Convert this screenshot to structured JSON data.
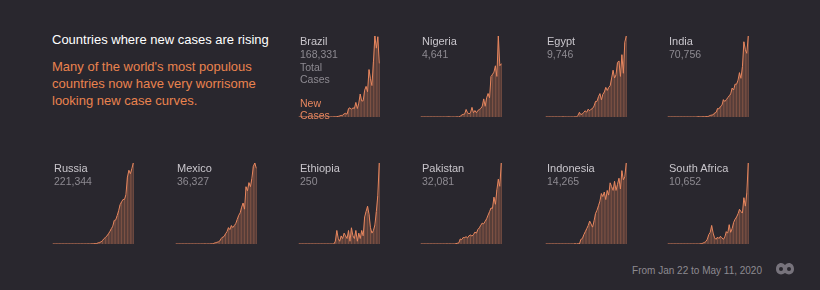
{
  "title": "Countries where new cases are rising",
  "subtitle": "Many of the world's most populous countries now have very worrisome looking new case curves.",
  "note": "From Jan 22 to May 11, 2020",
  "chart_data": [
    {
      "type": "area",
      "title": "Brazil",
      "total_cases": {
        "value": 168331,
        "label": "168,331"
      },
      "annotations": [
        "Total Cases",
        "New Cases"
      ],
      "categories": [
        null,
        null,
        null,
        null,
        null,
        null,
        null,
        null,
        null,
        null,
        null,
        null,
        null,
        null,
        null,
        null,
        null,
        null,
        null,
        null,
        null,
        null,
        null,
        null,
        null,
        null,
        null,
        null,
        null,
        null,
        null,
        null,
        null,
        null,
        null,
        null,
        null,
        null,
        null,
        null,
        null,
        null,
        null,
        null,
        null,
        null,
        null,
        null,
        null,
        null,
        null,
        null,
        null,
        null,
        null,
        null
      ],
      "values": [
        0,
        0,
        0,
        0,
        0,
        0,
        0,
        0,
        0,
        0,
        0,
        0,
        0,
        0,
        0,
        0,
        0,
        0,
        0,
        1,
        0,
        1,
        5,
        10,
        20,
        25,
        40,
        80,
        140,
        200,
        230,
        420,
        480,
        350,
        1100,
        1200,
        1000,
        1200,
        1100,
        1900,
        1100,
        1800,
        3000,
        2100,
        2100,
        3500,
        4000,
        3300,
        6200,
        5000,
        4100,
        7200,
        10600,
        9000,
        10500,
        7000
      ],
      "color": "#e8875f",
      "ylim": [
        0,
        10600
      ],
      "tick_labels": false,
      "grid": false
    },
    {
      "type": "area",
      "title": "Nigeria",
      "total_cases": {
        "value": 4641,
        "label": "4,641"
      },
      "categories": [
        null,
        null,
        null,
        null,
        null,
        null,
        null,
        null,
        null,
        null,
        null,
        null,
        null,
        null,
        null,
        null,
        null,
        null,
        null,
        null,
        null,
        null,
        null,
        null,
        null,
        null,
        null,
        null,
        null,
        null,
        null,
        null,
        null,
        null,
        null,
        null,
        null,
        null,
        null,
        null,
        null,
        null,
        null,
        null,
        null,
        null,
        null,
        null,
        null,
        null,
        null,
        null,
        null,
        null,
        null,
        null
      ],
      "values": [
        0,
        0,
        0,
        0,
        0,
        0,
        0,
        0,
        0,
        0,
        0,
        0,
        0,
        0,
        0,
        0,
        0,
        0,
        0,
        1,
        0,
        0,
        0,
        0,
        0,
        1,
        0,
        3,
        10,
        12,
        14,
        35,
        20,
        15,
        20,
        45,
        20,
        30,
        20,
        30,
        35,
        40,
        50,
        85,
        50,
        90,
        110,
        90,
        190,
        200,
        210,
        240,
        190,
        380,
        240,
        250
      ],
      "color": "#e8875f",
      "ylim": [
        0,
        380
      ],
      "tick_labels": false,
      "grid": false
    },
    {
      "type": "area",
      "title": "Egypt",
      "total_cases": {
        "value": 9746,
        "label": "9,746"
      },
      "categories": [
        null,
        null,
        null,
        null,
        null,
        null,
        null,
        null,
        null,
        null,
        null,
        null,
        null,
        null,
        null,
        null,
        null,
        null,
        null,
        null,
        null,
        null,
        null,
        null,
        null,
        null,
        null,
        null,
        null,
        null,
        null,
        null,
        null,
        null,
        null,
        null,
        null,
        null,
        null,
        null,
        null,
        null,
        null,
        null,
        null,
        null,
        null,
        null,
        null,
        null,
        null,
        null,
        null,
        null,
        null,
        null
      ],
      "values": [
        0,
        0,
        0,
        0,
        0,
        0,
        0,
        0,
        0,
        0,
        0,
        0,
        1,
        0,
        0,
        0,
        0,
        0,
        0,
        0,
        1,
        0,
        10,
        30,
        15,
        20,
        30,
        40,
        30,
        50,
        40,
        50,
        55,
        70,
        100,
        100,
        130,
        150,
        110,
        145,
        160,
        190,
        170,
        190,
        200,
        250,
        300,
        250,
        270,
        350,
        360,
        260,
        400,
        280,
        480,
        520
      ],
      "color": "#e8875f",
      "ylim": [
        0,
        520
      ],
      "tick_labels": false,
      "grid": false
    },
    {
      "type": "area",
      "title": "India",
      "total_cases": {
        "value": 70756,
        "label": "70,756"
      },
      "categories": [
        null,
        null,
        null,
        null,
        null,
        null,
        null,
        null,
        null,
        null,
        null,
        null,
        null,
        null,
        null,
        null,
        null,
        null,
        null,
        null,
        null,
        null,
        null,
        null,
        null,
        null,
        null,
        null,
        null,
        null,
        null,
        null,
        null,
        null,
        null,
        null,
        null,
        null,
        null,
        null,
        null,
        null,
        null,
        null,
        null,
        null,
        null,
        null,
        null,
        null,
        null,
        null,
        null,
        null,
        null,
        null
      ],
      "values": [
        0,
        0,
        0,
        0,
        1,
        0,
        2,
        0,
        0,
        0,
        0,
        0,
        0,
        0,
        0,
        0,
        0,
        0,
        0,
        0,
        1,
        22,
        3,
        10,
        15,
        10,
        20,
        20,
        40,
        80,
        100,
        110,
        210,
        230,
        440,
        420,
        550,
        600,
        900,
        800,
        900,
        1000,
        1100,
        1200,
        1500,
        1400,
        1700,
        1700,
        1900,
        2300,
        2000,
        2600,
        3900,
        3500,
        3300,
        4200
      ],
      "color": "#e8875f",
      "ylim": [
        0,
        4200
      ],
      "tick_labels": false,
      "grid": false
    },
    {
      "type": "area",
      "title": "Russia",
      "total_cases": {
        "value": 221344,
        "label": "221,344"
      },
      "categories": [
        null,
        null,
        null,
        null,
        null,
        null,
        null,
        null,
        null,
        null,
        null,
        null,
        null,
        null,
        null,
        null,
        null,
        null,
        null,
        null,
        null,
        null,
        null,
        null,
        null,
        null,
        null,
        null,
        null,
        null,
        null,
        null,
        null,
        null,
        null,
        null,
        null,
        null,
        null,
        null,
        null,
        null,
        null,
        null,
        null,
        null,
        null,
        null,
        null,
        null,
        null,
        null,
        null,
        null,
        null,
        null
      ],
      "values": [
        0,
        0,
        0,
        0,
        2,
        0,
        0,
        0,
        0,
        0,
        0,
        0,
        0,
        0,
        0,
        0,
        0,
        0,
        0,
        0,
        1,
        0,
        1,
        2,
        10,
        6,
        10,
        30,
        40,
        60,
        70,
        160,
        230,
        300,
        500,
        770,
        950,
        1150,
        1460,
        1780,
        2200,
        2550,
        3390,
        3450,
        4070,
        4780,
        5640,
        6060,
        6400,
        6410,
        7100,
        9620,
        10600,
        10100,
        10800,
        11650
      ],
      "color": "#e8875f",
      "ylim": [
        0,
        11650
      ],
      "tick_labels": false,
      "grid": false
    },
    {
      "type": "area",
      "title": "Mexico",
      "total_cases": {
        "value": 36327,
        "label": "36,327"
      },
      "categories": [
        null,
        null,
        null,
        null,
        null,
        null,
        null,
        null,
        null,
        null,
        null,
        null,
        null,
        null,
        null,
        null,
        null,
        null,
        null,
        null,
        null,
        null,
        null,
        null,
        null,
        null,
        null,
        null,
        null,
        null,
        null,
        null,
        null,
        null,
        null,
        null,
        null,
        null,
        null,
        null,
        null,
        null,
        null,
        null,
        null,
        null,
        null,
        null,
        null,
        null,
        null,
        null,
        null,
        null,
        null,
        null
      ],
      "values": [
        0,
        0,
        0,
        0,
        0,
        0,
        0,
        0,
        0,
        0,
        0,
        0,
        0,
        0,
        0,
        0,
        0,
        0,
        0,
        1,
        2,
        0,
        1,
        1,
        4,
        4,
        15,
        30,
        40,
        50,
        70,
        130,
        170,
        180,
        250,
        300,
        400,
        350,
        450,
        400,
        450,
        500,
        600,
        700,
        760,
        900,
        1000,
        850,
        1400,
        1300,
        1500,
        1400,
        1600,
        1900,
        1980,
        1850
      ],
      "color": "#e8875f",
      "ylim": [
        0,
        1980
      ],
      "tick_labels": false,
      "grid": false
    },
    {
      "type": "area",
      "title": "Ethiopia",
      "total_cases": {
        "value": 250,
        "label": "250"
      },
      "categories": [
        null,
        null,
        null,
        null,
        null,
        null,
        null,
        null,
        null,
        null,
        null,
        null,
        null,
        null,
        null,
        null,
        null,
        null,
        null,
        null,
        null,
        null,
        null,
        null,
        null,
        null,
        null,
        null,
        null,
        null,
        null,
        null,
        null,
        null,
        null,
        null,
        null,
        null,
        null,
        null,
        null,
        null,
        null,
        null,
        null,
        null,
        null,
        null,
        null,
        null,
        null,
        null,
        null,
        null,
        null,
        null
      ],
      "values": [
        0,
        0,
        0,
        0,
        0,
        0,
        0,
        0,
        0,
        0,
        0,
        0,
        0,
        0,
        0,
        0,
        0,
        0,
        0,
        0,
        0,
        0,
        0,
        0,
        0,
        1,
        5,
        2,
        1,
        3,
        2,
        4,
        3,
        2,
        5,
        1,
        6,
        3,
        2,
        5,
        1,
        4,
        2,
        5,
        3,
        10,
        12,
        14,
        11,
        6,
        4,
        5,
        7,
        12,
        18,
        30
      ],
      "color": "#e8875f",
      "ylim": [
        0,
        30
      ],
      "tick_labels": false,
      "grid": false
    },
    {
      "type": "area",
      "title": "Pakistan",
      "total_cases": {
        "value": 32081,
        "label": "32,081"
      },
      "categories": [
        null,
        null,
        null,
        null,
        null,
        null,
        null,
        null,
        null,
        null,
        null,
        null,
        null,
        null,
        null,
        null,
        null,
        null,
        null,
        null,
        null,
        null,
        null,
        null,
        null,
        null,
        null,
        null,
        null,
        null,
        null,
        null,
        null,
        null,
        null,
        null,
        null,
        null,
        null,
        null,
        null,
        null,
        null,
        null,
        null,
        null,
        null,
        null,
        null,
        null,
        null,
        null,
        null,
        null,
        null,
        null
      ],
      "values": [
        0,
        0,
        0,
        0,
        0,
        0,
        0,
        0,
        0,
        0,
        0,
        0,
        0,
        0,
        0,
        0,
        0,
        0,
        2,
        0,
        1,
        1,
        0,
        2,
        10,
        20,
        30,
        140,
        120,
        180,
        180,
        200,
        170,
        230,
        250,
        220,
        260,
        330,
        300,
        400,
        450,
        520,
        580,
        560,
        630,
        700,
        800,
        900,
        1000,
        990,
        1300,
        1100,
        1500,
        1800,
        1600,
        2250
      ],
      "color": "#e8875f",
      "ylim": [
        0,
        2250
      ],
      "tick_labels": false,
      "grid": false
    },
    {
      "type": "area",
      "title": "Indonesia",
      "total_cases": {
        "value": 14265,
        "label": "14,265"
      },
      "categories": [
        null,
        null,
        null,
        null,
        null,
        null,
        null,
        null,
        null,
        null,
        null,
        null,
        null,
        null,
        null,
        null,
        null,
        null,
        null,
        null,
        null,
        null,
        null,
        null,
        null,
        null,
        null,
        null,
        null,
        null,
        null,
        null,
        null,
        null,
        null,
        null,
        null,
        null,
        null,
        null,
        null,
        null,
        null,
        null,
        null,
        null,
        null,
        null,
        null,
        null,
        null,
        null,
        null,
        null,
        null,
        null
      ],
      "values": [
        0,
        0,
        0,
        0,
        0,
        0,
        0,
        0,
        0,
        0,
        0,
        0,
        0,
        0,
        0,
        0,
        0,
        0,
        0,
        0,
        2,
        0,
        2,
        0,
        30,
        35,
        60,
        80,
        100,
        120,
        150,
        130,
        110,
        150,
        200,
        220,
        250,
        280,
        330,
        310,
        340,
        290,
        350,
        320,
        400,
        375,
        350,
        410,
        350,
        390,
        430,
        360,
        480,
        420,
        440,
        530
      ],
      "color": "#e8875f",
      "ylim": [
        0,
        530
      ],
      "tick_labels": false,
      "grid": false
    },
    {
      "type": "area",
      "title": "South Africa",
      "total_cases": {
        "value": 10652,
        "label": "10,652"
      },
      "categories": [
        null,
        null,
        null,
        null,
        null,
        null,
        null,
        null,
        null,
        null,
        null,
        null,
        null,
        null,
        null,
        null,
        null,
        null,
        null,
        null,
        null,
        null,
        null,
        null,
        null,
        null,
        null,
        null,
        null,
        null,
        null,
        null,
        null,
        null,
        null,
        null,
        null,
        null,
        null,
        null,
        null,
        null,
        null,
        null,
        null,
        null,
        null,
        null,
        null,
        null,
        null,
        null,
        null,
        null,
        null,
        null
      ],
      "values": [
        0,
        0,
        0,
        0,
        0,
        0,
        0,
        0,
        0,
        0,
        0,
        0,
        0,
        0,
        0,
        0,
        0,
        0,
        0,
        0,
        0,
        0,
        1,
        6,
        10,
        20,
        30,
        60,
        120,
        150,
        240,
        140,
        80,
        60,
        90,
        70,
        100,
        80,
        60,
        90,
        160,
        140,
        250,
        150,
        200,
        280,
        320,
        350,
        390,
        450,
        420,
        400,
        600,
        490,
        660,
        1050
      ],
      "color": "#e8875f",
      "ylim": [
        0,
        1050
      ],
      "tick_labels": false,
      "grid": false
    }
  ]
}
